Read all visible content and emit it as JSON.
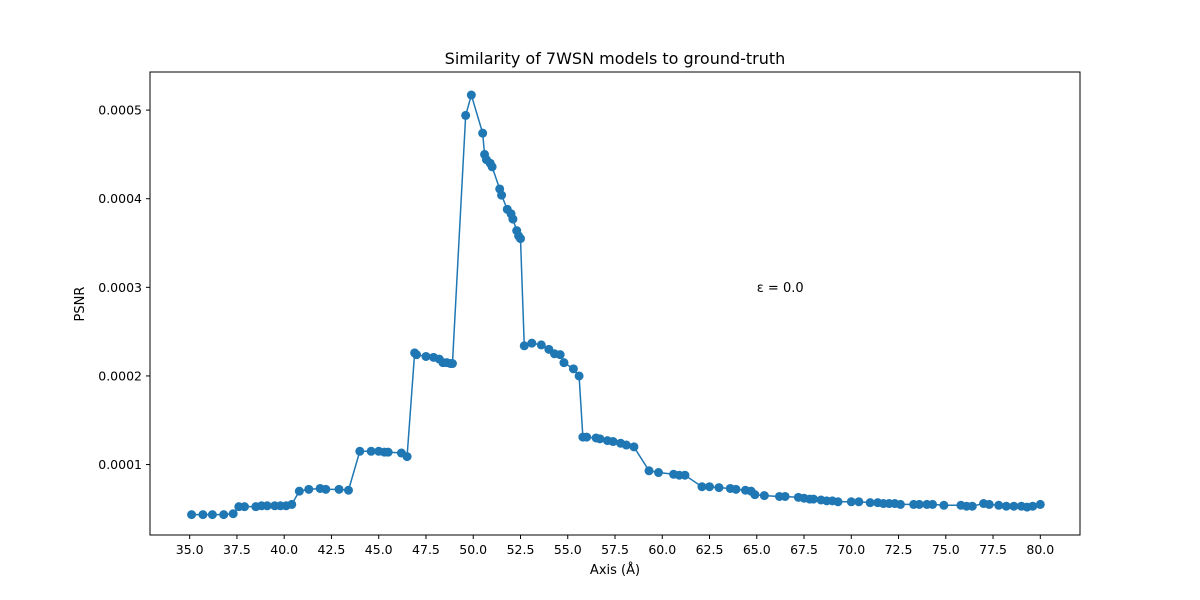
{
  "chart_data": {
    "type": "line",
    "title": "Similarity of 7WSN models to ground-truth",
    "xlabel": "Axis (Å)",
    "ylabel": "PSNR",
    "xlim": [
      32.9,
      82.1
    ],
    "ylim": [
      2.05e-05,
      0.000543
    ],
    "xticks": [
      35.0,
      37.5,
      40.0,
      42.5,
      45.0,
      47.5,
      50.0,
      52.5,
      55.0,
      57.5,
      60.0,
      62.5,
      65.0,
      67.5,
      70.0,
      72.5,
      75.0,
      77.5,
      80.0
    ],
    "xtick_labels": [
      "35.0",
      "37.5",
      "40.0",
      "42.5",
      "45.0",
      "47.5",
      "50.0",
      "52.5",
      "55.0",
      "57.5",
      "60.0",
      "62.5",
      "65.0",
      "67.5",
      "70.0",
      "72.5",
      "75.0",
      "77.5",
      "80.0"
    ],
    "yticks": [
      0.0001,
      0.0002,
      0.0003,
      0.0004,
      0.0005
    ],
    "ytick_labels": [
      "0.0001",
      "0.0002",
      "0.0003",
      "0.0004",
      "0.0005"
    ],
    "grid": false,
    "annotation": {
      "text": "ε = 0.0",
      "x": 65.0,
      "y": 0.0003
    },
    "series": [
      {
        "color": "#1f77b4",
        "marker": "circle",
        "x": [
          35.1,
          35.7,
          36.2,
          36.8,
          37.3,
          37.6,
          37.9,
          38.5,
          38.8,
          39.1,
          39.5,
          39.8,
          40.1,
          40.4,
          40.8,
          41.3,
          41.9,
          42.2,
          42.9,
          43.4,
          44.0,
          44.6,
          45.0,
          45.3,
          45.5,
          46.2,
          46.5,
          46.9,
          47.0,
          47.5,
          47.9,
          48.2,
          48.4,
          48.6,
          48.8,
          48.9,
          49.6,
          49.9,
          50.5,
          50.6,
          50.7,
          50.9,
          51.0,
          51.4,
          51.5,
          51.8,
          52.0,
          52.1,
          52.3,
          52.4,
          52.5,
          52.7,
          53.1,
          53.6,
          54.0,
          54.3,
          54.6,
          54.8,
          55.3,
          55.6,
          55.8,
          56.0,
          56.5,
          56.7,
          57.1,
          57.4,
          57.8,
          58.1,
          58.5,
          59.3,
          59.8,
          60.6,
          60.9,
          61.2,
          62.1,
          62.5,
          63.0,
          63.6,
          63.9,
          64.4,
          64.7,
          64.9,
          65.4,
          66.2,
          66.5,
          67.2,
          67.5,
          67.8,
          68.0,
          68.4,
          68.7,
          69.0,
          69.3,
          70.0,
          70.4,
          71.0,
          71.4,
          71.7,
          72.0,
          72.3,
          72.6,
          73.3,
          73.6,
          74.0,
          74.3,
          74.9,
          75.8,
          76.1,
          76.4,
          77.0,
          77.3,
          77.8,
          78.2,
          78.6,
          79.0,
          79.3,
          79.6,
          80.0
        ],
        "y": [
          4.35e-05,
          4.35e-05,
          4.35e-05,
          4.35e-05,
          4.45e-05,
          5.25e-05,
          5.25e-05,
          5.25e-05,
          5.35e-05,
          5.35e-05,
          5.35e-05,
          5.35e-05,
          5.35e-05,
          5.5e-05,
          7e-05,
          7.2e-05,
          7.3e-05,
          7.2e-05,
          7.2e-05,
          7.1e-05,
          0.000115,
          0.000115,
          0.000115,
          0.000114,
          0.000114,
          0.000113,
          0.000109,
          0.000226,
          0.000224,
          0.000222,
          0.000221,
          0.000219,
          0.000215,
          0.000215,
          0.000214,
          0.000214,
          0.000494,
          0.000517,
          0.000474,
          0.00045,
          0.000444,
          0.00044,
          0.000436,
          0.000411,
          0.000404,
          0.000388,
          0.000383,
          0.000377,
          0.000364,
          0.000358,
          0.000355,
          0.000234,
          0.000237,
          0.000235,
          0.00023,
          0.000225,
          0.000224,
          0.000215,
          0.000208,
          0.0002,
          0.000131,
          0.000131,
          0.00013,
          0.000129,
          0.000127,
          0.000126,
          0.000124,
          0.000122,
          0.00012,
          9.3e-05,
          9.1e-05,
          8.9e-05,
          8.8e-05,
          8.8e-05,
          7.5e-05,
          7.5e-05,
          7.4e-05,
          7.3e-05,
          7.2e-05,
          7.1e-05,
          7e-05,
          6.6e-05,
          6.5e-05,
          6.4e-05,
          6.4e-05,
          6.3e-05,
          6.2e-05,
          6.1e-05,
          6.1e-05,
          6e-05,
          5.9e-05,
          5.9e-05,
          5.8e-05,
          5.8e-05,
          5.8e-05,
          5.7e-05,
          5.7e-05,
          5.6e-05,
          5.6e-05,
          5.6e-05,
          5.5e-05,
          5.5e-05,
          5.5e-05,
          5.5e-05,
          5.5e-05,
          5.4e-05,
          5.4e-05,
          5.3e-05,
          5.3e-05,
          5.6e-05,
          5.5e-05,
          5.4e-05,
          5.3e-05,
          5.3e-05,
          5.3e-05,
          5.2e-05,
          5.3e-05,
          5.5e-05
        ]
      }
    ]
  }
}
